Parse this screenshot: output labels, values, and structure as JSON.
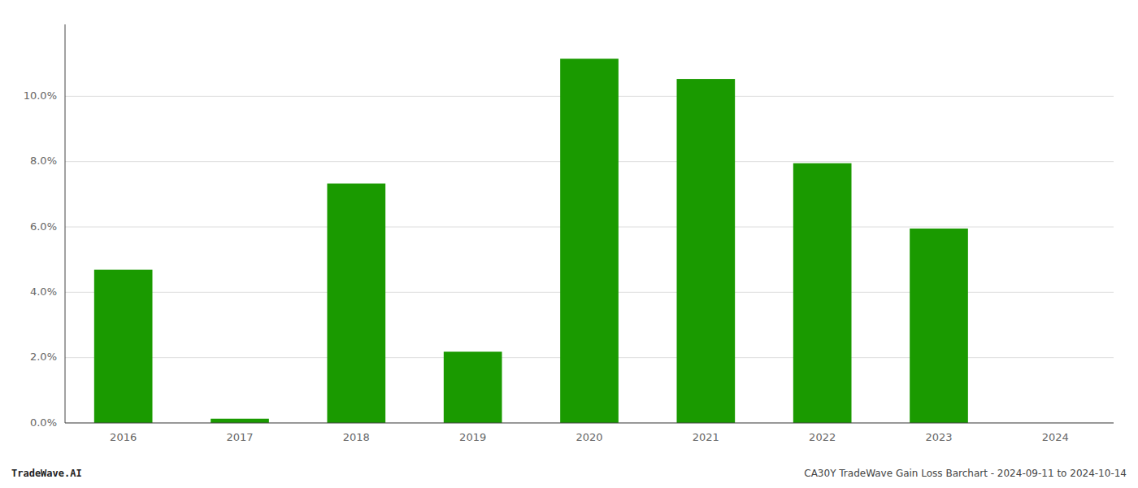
{
  "chart_data": {
    "type": "bar",
    "categories": [
      "2016",
      "2017",
      "2018",
      "2019",
      "2020",
      "2021",
      "2022",
      "2023",
      "2024"
    ],
    "values": [
      0.0469,
      0.0013,
      0.0733,
      0.0218,
      0.1115,
      0.1053,
      0.0795,
      0.0595,
      0.0
    ],
    "color": "#1a9a00",
    "ylim": [
      0,
      0.122
    ],
    "yticks": [
      {
        "value": 0.0,
        "label": "0.0%"
      },
      {
        "value": 0.02,
        "label": "2.0%"
      },
      {
        "value": 0.04,
        "label": "4.0%"
      },
      {
        "value": 0.06,
        "label": "6.0%"
      },
      {
        "value": 0.08,
        "label": "8.0%"
      },
      {
        "value": 0.1,
        "label": "10.0%"
      }
    ],
    "grid": true,
    "annotations": [
      "TradeWave.AI",
      "CA30Y TradeWave Gain Loss Barchart - 2024-09-11 to 2024-10-14"
    ]
  }
}
